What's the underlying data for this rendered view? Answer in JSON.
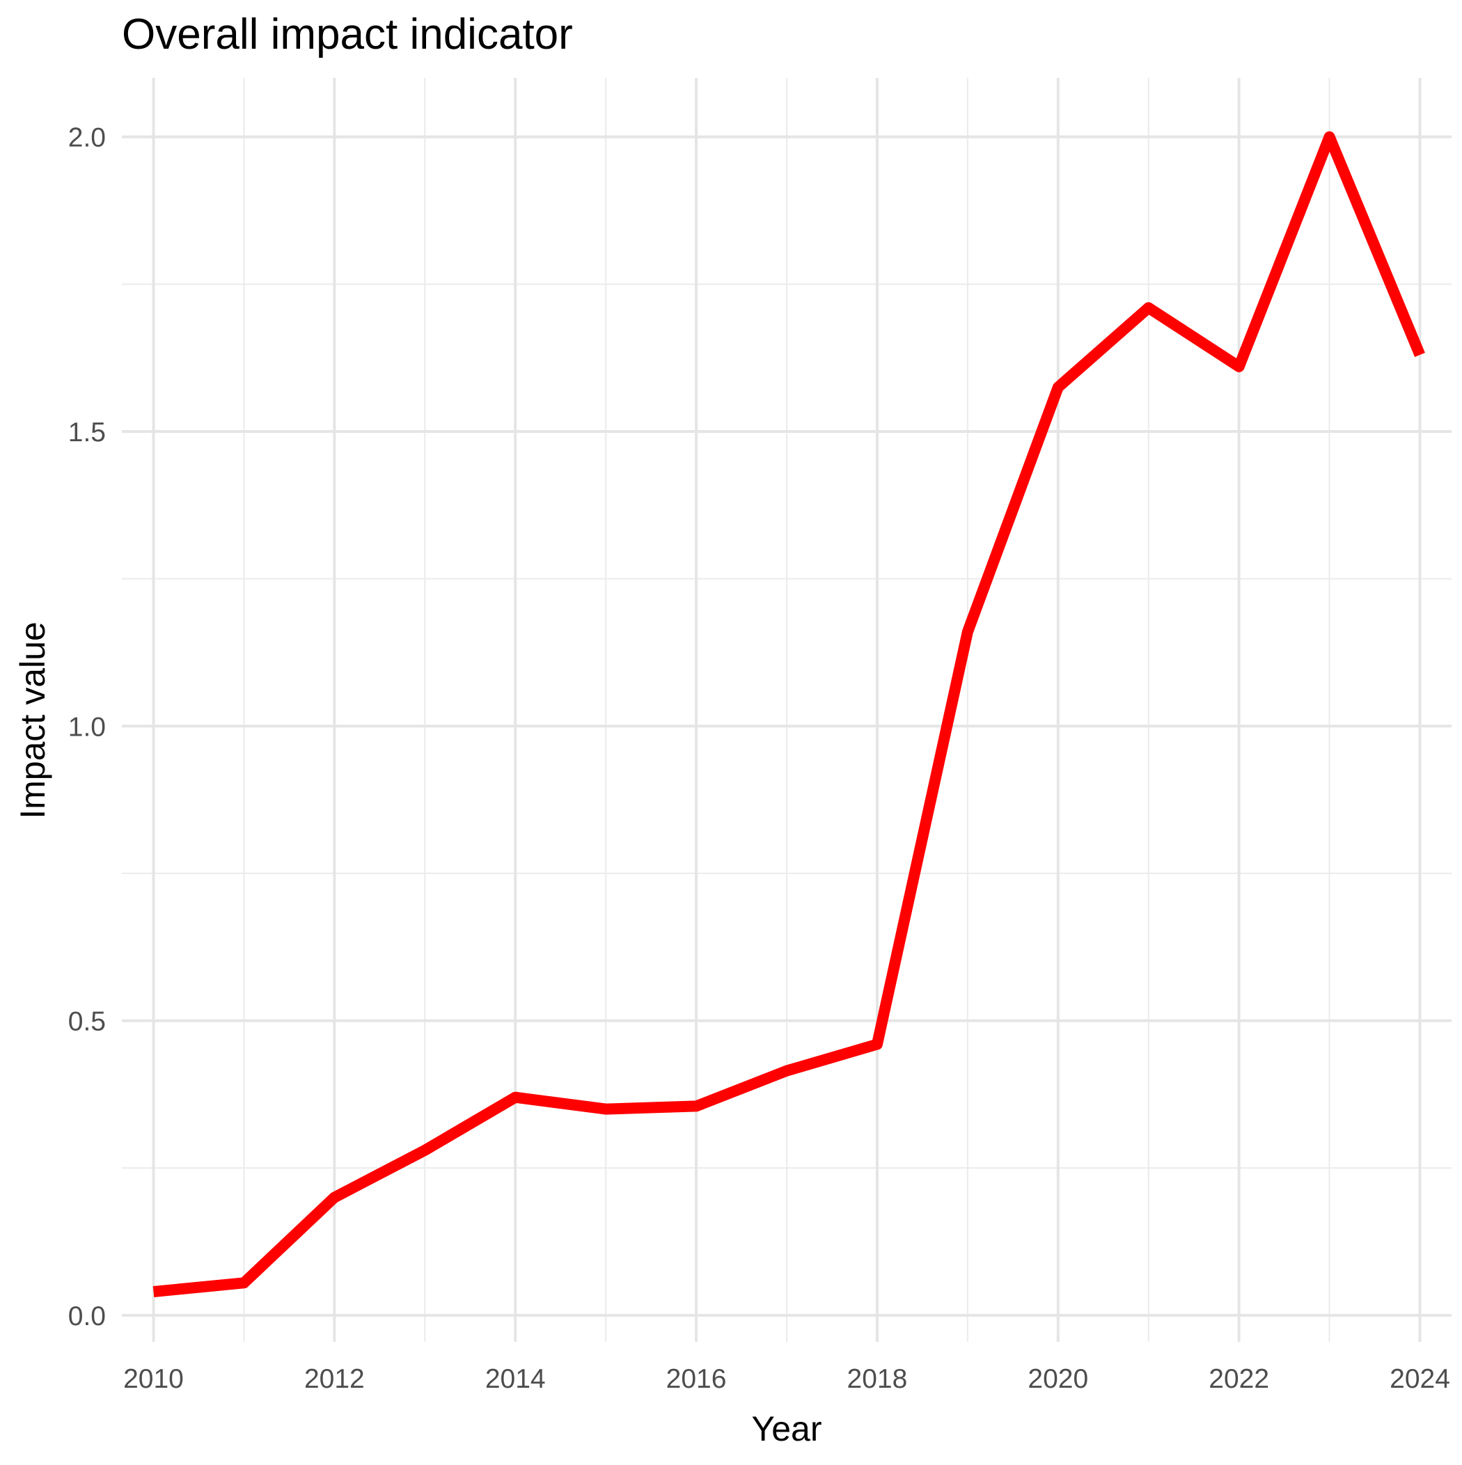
{
  "chart_data": {
    "type": "line",
    "title": "Overall impact indicator",
    "xlabel": "Year",
    "ylabel": "Impact value",
    "x_ticks": [
      "2010",
      "2012",
      "2014",
      "2016",
      "2018",
      "2020",
      "2022",
      "2024"
    ],
    "y_ticks": [
      "0.0",
      "0.5",
      "1.0",
      "1.5",
      "2.0"
    ],
    "xlim": [
      2009.65,
      2024.35
    ],
    "ylim": [
      -0.045,
      2.1
    ],
    "grid": true,
    "legend": "none",
    "series": [
      {
        "color": "#ff0000",
        "x": [
          2010,
          2011,
          2012,
          2013,
          2014,
          2015,
          2016,
          2017,
          2018,
          2019,
          2020,
          2021,
          2022,
          2023,
          2024
        ],
        "values": [
          0.04,
          0.055,
          0.2,
          0.28,
          0.37,
          0.35,
          0.355,
          0.415,
          0.46,
          1.16,
          1.575,
          1.71,
          1.61,
          2.0,
          1.63
        ]
      }
    ]
  }
}
